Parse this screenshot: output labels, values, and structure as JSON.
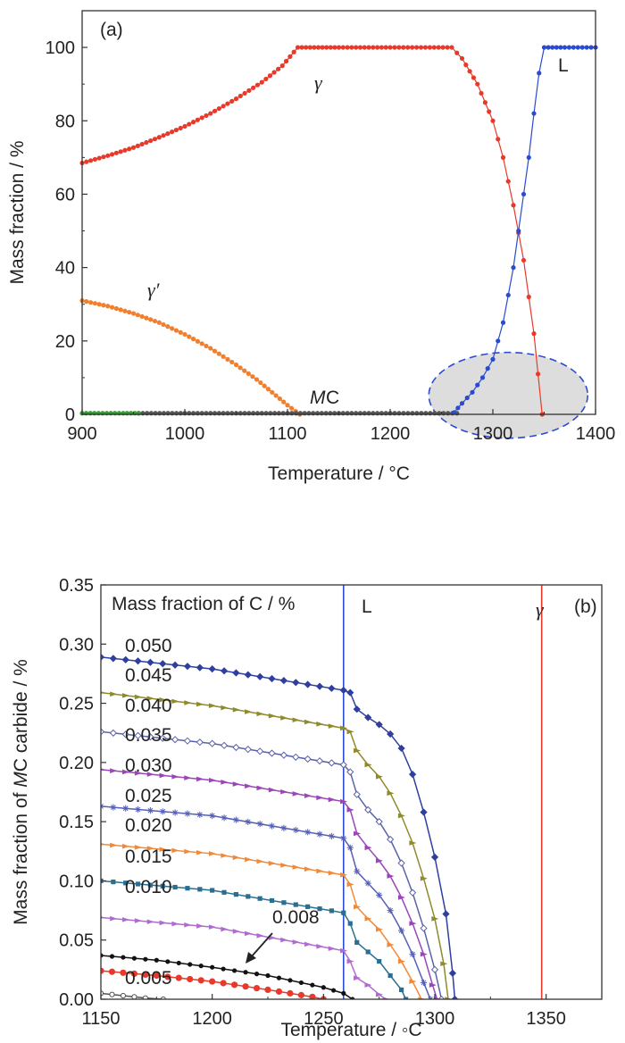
{
  "chart_data": [
    {
      "panel_label": "(a)",
      "type": "line",
      "xlabel": "Temperature / °C",
      "ylabel": "Mass fraction / %",
      "xlim": [
        900,
        1400
      ],
      "ylim": [
        0,
        110
      ],
      "xticks": [
        "900",
        "1000",
        "1100",
        "1200",
        "1300",
        "1400"
      ],
      "yticks": [
        "0",
        "20",
        "40",
        "60",
        "80",
        "100"
      ],
      "grid": false,
      "annotations": {
        "gamma": "γ",
        "gamma_prime": "γ′",
        "mc_m": "M",
        "mc_c": "C",
        "liquid": "L"
      },
      "series": [
        {
          "name": "γ",
          "color": "#e8392a",
          "marker": "circle",
          "x": [
            900,
            925,
            950,
            975,
            1000,
            1025,
            1050,
            1075,
            1095,
            1110,
            1150,
            1200,
            1260,
            1270,
            1285,
            1300,
            1310,
            1320,
            1330,
            1340,
            1348
          ],
          "y": [
            68.5,
            70.5,
            72.7,
            75.5,
            78.5,
            82,
            86,
            90.5,
            95,
            100,
            100,
            100,
            100,
            97,
            90,
            80,
            70,
            57,
            42,
            22,
            0
          ]
        },
        {
          "name": "γ′",
          "color": "#f07f2e",
          "marker": "circle",
          "x": [
            900,
            925,
            950,
            975,
            1000,
            1025,
            1050,
            1070,
            1085,
            1100,
            1112
          ],
          "y": [
            31,
            29.5,
            27.5,
            25,
            21.8,
            18,
            13.5,
            9.5,
            6,
            2.5,
            0
          ]
        },
        {
          "name": "MC",
          "color": "#555555",
          "marker": "circle",
          "x": [
            955,
            1000,
            1100,
            1200,
            1265
          ],
          "y": [
            0.3,
            0.3,
            0.3,
            0.3,
            0.3
          ]
        },
        {
          "name": "",
          "color": "#3a9a3a",
          "marker": "circle",
          "x": [
            900,
            920,
            940,
            955
          ],
          "y": [
            0.3,
            0.3,
            0.3,
            0.3
          ]
        },
        {
          "name": "L",
          "color": "#2a4bd0",
          "marker": "circle",
          "x": [
            1262,
            1270,
            1280,
            1290,
            1300,
            1310,
            1320,
            1325,
            1330,
            1335,
            1340,
            1345,
            1350,
            1370,
            1400
          ],
          "y": [
            0.5,
            3,
            6,
            10,
            15,
            25,
            40,
            50,
            60,
            70,
            82,
            93,
            100,
            100,
            100
          ]
        }
      ],
      "highlight": {
        "shape": "ellipse",
        "fill": "#dddddd",
        "border": "dashed",
        "border_color": "#2a4bd0"
      }
    },
    {
      "panel_label": "(b)",
      "type": "line",
      "xlabel": "Temperature / ◦C",
      "ylabel_parts": {
        "pre": "Mass fraction of ",
        "ital": "M",
        "post": "C carbide / %"
      },
      "xlim": [
        1150,
        1375
      ],
      "ylim": [
        0,
        0.35
      ],
      "xticks": [
        "1150",
        "1200",
        "1250",
        "1300",
        "1350"
      ],
      "yticks": [
        "0.00",
        "0.05",
        "0.10",
        "0.15",
        "0.20",
        "0.25",
        "0.30",
        "0.35"
      ],
      "grid": false,
      "legend_title": "Mass fraction of C / %",
      "annotations": {
        "liquid": "L",
        "gamma": "γ",
        "arrow_label": "0.008"
      },
      "vlines": [
        {
          "name": "L",
          "x": 1259,
          "color": "#2a4bd0"
        },
        {
          "name": "γ",
          "x": 1348,
          "color": "#e8392a"
        }
      ],
      "series": [
        {
          "name": "0.050",
          "color": "#2e3f9e",
          "marker": "diamond",
          "x": [
            1150,
            1200,
            1259,
            1262,
            1265,
            1270,
            1275,
            1280,
            1285,
            1290,
            1295,
            1300,
            1305,
            1308,
            1309
          ],
          "y": [
            0.289,
            0.279,
            0.261,
            0.259,
            0.245,
            0.238,
            0.232,
            0.224,
            0.212,
            0.19,
            0.158,
            0.12,
            0.072,
            0.022,
            0
          ]
        },
        {
          "name": "0.045",
          "color": "#8f8a2a",
          "marker": "triangle",
          "x": [
            1150,
            1200,
            1259,
            1262,
            1265,
            1270,
            1275,
            1280,
            1285,
            1290,
            1295,
            1300,
            1304,
            1306
          ],
          "y": [
            0.259,
            0.248,
            0.229,
            0.226,
            0.21,
            0.198,
            0.188,
            0.174,
            0.155,
            0.132,
            0.102,
            0.068,
            0.03,
            0
          ]
        },
        {
          "name": "0.040",
          "color": "#5a62a8",
          "marker": "open-diamond",
          "x": [
            1150,
            1200,
            1259,
            1262,
            1265,
            1270,
            1275,
            1280,
            1285,
            1290,
            1295,
            1300,
            1303
          ],
          "y": [
            0.226,
            0.216,
            0.198,
            0.192,
            0.173,
            0.16,
            0.15,
            0.135,
            0.115,
            0.09,
            0.06,
            0.025,
            0
          ]
        },
        {
          "name": "0.035",
          "color": "#9a46b8",
          "marker": "triangle",
          "x": [
            1150,
            1200,
            1259,
            1262,
            1265,
            1270,
            1275,
            1280,
            1285,
            1290,
            1295,
            1299,
            1301
          ],
          "y": [
            0.194,
            0.185,
            0.167,
            0.16,
            0.14,
            0.128,
            0.117,
            0.104,
            0.086,
            0.064,
            0.038,
            0.012,
            0
          ]
        },
        {
          "name": "0.030",
          "color": "#5560b5",
          "marker": "star",
          "x": [
            1150,
            1200,
            1259,
            1262,
            1265,
            1270,
            1275,
            1280,
            1285,
            1290,
            1295,
            1298
          ],
          "y": [
            0.163,
            0.155,
            0.136,
            0.128,
            0.108,
            0.098,
            0.088,
            0.075,
            0.058,
            0.038,
            0.014,
            0
          ]
        },
        {
          "name": "0.025",
          "color": "#f08a3a",
          "marker": "triangle",
          "x": [
            1150,
            1200,
            1259,
            1262,
            1265,
            1270,
            1275,
            1280,
            1285,
            1290,
            1294
          ],
          "y": [
            0.131,
            0.123,
            0.105,
            0.097,
            0.078,
            0.068,
            0.059,
            0.046,
            0.032,
            0.015,
            0
          ]
        },
        {
          "name": "0.020",
          "color": "#2a6f8f",
          "marker": "square",
          "x": [
            1150,
            1200,
            1259,
            1262,
            1265,
            1270,
            1275,
            1280,
            1285,
            1287
          ],
          "y": [
            0.1,
            0.092,
            0.073,
            0.064,
            0.048,
            0.04,
            0.032,
            0.02,
            0.008,
            0
          ]
        },
        {
          "name": "0.015",
          "color": "#b06ad0",
          "marker": "triangle",
          "x": [
            1150,
            1200,
            1259,
            1262,
            1265,
            1270,
            1275,
            1278
          ],
          "y": [
            0.069,
            0.061,
            0.041,
            0.032,
            0.018,
            0.012,
            0.004,
            0
          ]
        },
        {
          "name": "0.010",
          "color": "#111111",
          "marker": "circle",
          "x": [
            1150,
            1175,
            1200,
            1225,
            1250,
            1259,
            1263
          ],
          "y": [
            0.037,
            0.033,
            0.027,
            0.02,
            0.01,
            0.005,
            0
          ]
        },
        {
          "name": "0.008",
          "color": "#e8392a",
          "marker": "circle",
          "x": [
            1150,
            1175,
            1200,
            1225,
            1245,
            1250
          ],
          "y": [
            0.024,
            0.02,
            0.015,
            0.008,
            0.002,
            0
          ]
        },
        {
          "name": "0.005",
          "color": "#555555",
          "marker": "open-circle",
          "x": [
            1150,
            1160,
            1170,
            1178
          ],
          "y": [
            0.005,
            0.003,
            0.001,
            0
          ]
        }
      ]
    }
  ]
}
